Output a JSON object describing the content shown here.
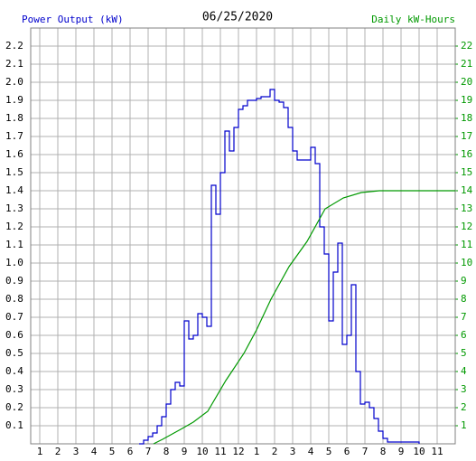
{
  "chart_data": {
    "type": "line",
    "title": "06/25/2020",
    "y_label": "Power Output (kW)",
    "y2_label": "Daily kW-Hours",
    "grid": true,
    "xlim": [
      0.5,
      24
    ],
    "ylim": [
      0,
      2.3
    ],
    "y2lim": [
      0,
      23
    ],
    "xticks": [
      1,
      2,
      3,
      4,
      5,
      6,
      7,
      8,
      9,
      10,
      11,
      12,
      {
        "value": 13,
        "label": "1"
      },
      {
        "value": 14,
        "label": "2"
      },
      {
        "value": 15,
        "label": "3"
      },
      {
        "value": 16,
        "label": "4"
      },
      {
        "value": 17,
        "label": "5"
      },
      {
        "value": 18,
        "label": "6"
      },
      {
        "value": 19,
        "label": "7"
      },
      {
        "value": 20,
        "label": "8"
      },
      {
        "value": 21,
        "label": "9"
      },
      {
        "value": 22,
        "label": "10"
      },
      {
        "value": 23,
        "label": "11"
      }
    ],
    "yticks": [
      0.1,
      0.2,
      0.3,
      0.4,
      0.5,
      0.6,
      0.7,
      0.8,
      0.9,
      {
        "value": 1,
        "label": "1.0"
      },
      1.1,
      1.2,
      1.3,
      1.4,
      1.5,
      1.6,
      1.7,
      1.8,
      1.9,
      {
        "value": 2,
        "label": "2.0"
      },
      2.1,
      2.2
    ],
    "y2ticks": [
      1,
      2,
      3,
      4,
      5,
      6,
      7,
      8,
      9,
      10,
      11,
      12,
      13,
      14,
      15,
      16,
      17,
      18,
      19,
      20,
      21,
      22
    ],
    "series": [
      {
        "name": "Power Output (kW)",
        "color": "#0000cc",
        "step": true,
        "x": [
          6.5,
          6.75,
          7,
          7.25,
          7.5,
          7.75,
          8,
          8.25,
          8.5,
          8.75,
          9,
          9.25,
          9.5,
          9.75,
          10,
          10.25,
          10.5,
          10.75,
          11,
          11.25,
          11.5,
          11.75,
          12,
          12.25,
          12.5,
          12.75,
          13,
          13.25,
          13.5,
          13.75,
          14,
          14.25,
          14.5,
          14.75,
          15,
          15.25,
          15.5,
          15.75,
          16,
          16.25,
          16.5,
          16.75,
          17,
          17.25,
          17.5,
          17.75,
          18,
          18.25,
          18.5,
          18.75,
          19,
          19.25,
          19.5,
          19.75,
          20,
          20.25,
          20.5,
          22
        ],
        "values": [
          0,
          0.02,
          0.04,
          0.06,
          0.1,
          0.15,
          0.22,
          0.3,
          0.34,
          0.32,
          0.68,
          0.58,
          0.6,
          0.72,
          0.7,
          0.65,
          1.43,
          1.27,
          1.5,
          1.73,
          1.62,
          1.75,
          1.85,
          1.87,
          1.9,
          1.9,
          1.91,
          1.92,
          1.92,
          1.96,
          1.9,
          1.89,
          1.86,
          1.75,
          1.62,
          1.57,
          1.57,
          1.57,
          1.64,
          1.55,
          1.2,
          1.05,
          0.68,
          0.95,
          1.11,
          0.55,
          0.6,
          0.88,
          0.4,
          0.22,
          0.23,
          0.2,
          0.14,
          0.07,
          0.03,
          0.01,
          0.01,
          0
        ]
      },
      {
        "name": "Daily kW-Hours",
        "color": "#009900",
        "axis": "y2",
        "step": false,
        "x": [
          7.3,
          7.8,
          8.8,
          9.5,
          10.3,
          11.3,
          12.3,
          13,
          13.8,
          14.8,
          15.8,
          16.8,
          17.8,
          18.8,
          19.8,
          24
        ],
        "values": [
          0,
          0.25,
          0.8,
          1.2,
          1.8,
          3.5,
          5,
          6.3,
          8,
          9.8,
          11.2,
          13,
          13.6,
          13.9,
          14,
          14
        ]
      }
    ]
  }
}
